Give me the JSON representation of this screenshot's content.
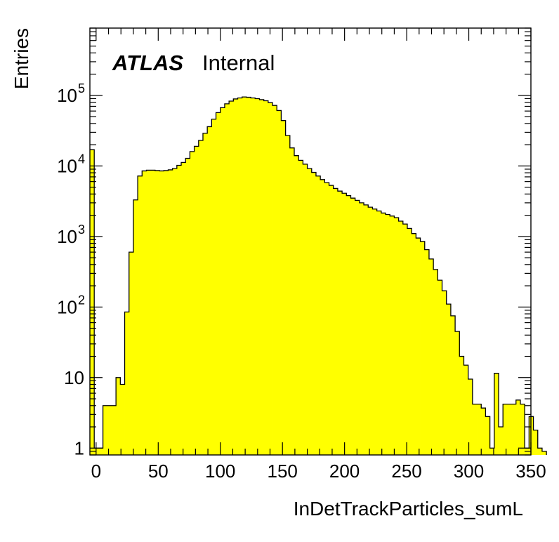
{
  "chart_data": {
    "type": "bar",
    "xlabel": "InDetTrackParticles_sumL",
    "ylabel": "Entries",
    "x_scale": "linear",
    "y_scale": "log",
    "xlim": [
      -5,
      350
    ],
    "ylim": [
      0.8,
      900000
    ],
    "bin_width": 3.5,
    "x_ticks": [
      0,
      50,
      100,
      150,
      200,
      250,
      300,
      350
    ],
    "x_tick_labels": [
      "0",
      "50",
      "100",
      "150",
      "200",
      "250",
      "300",
      "350"
    ],
    "y_ticks": [
      1,
      10,
      100,
      1000,
      10000,
      100000
    ],
    "y_tick_labels": [
      {
        "base": "1",
        "exp": ""
      },
      {
        "base": "10",
        "exp": ""
      },
      {
        "base": "10",
        "exp": "2"
      },
      {
        "base": "10",
        "exp": "3"
      },
      {
        "base": "10",
        "exp": "4"
      },
      {
        "base": "10",
        "exp": "5"
      }
    ],
    "fill_color": "#ffff00",
    "line_color": "#000000",
    "annotation": {
      "bold_text": "ATLAS",
      "text": "Internal",
      "position": "top-left"
    },
    "series": [
      {
        "values": [
          17000,
          1,
          1,
          4,
          4,
          4,
          10,
          8,
          85,
          600,
          3300,
          7200,
          8500,
          8700,
          8700,
          8600,
          8500,
          8600,
          8800,
          9200,
          10200,
          11200,
          12800,
          16000,
          19000,
          23000,
          29000,
          36000,
          46000,
          57000,
          67000,
          76000,
          83000,
          89000,
          92000,
          95000,
          94000,
          92000,
          90000,
          87000,
          84000,
          79000,
          72000,
          61000,
          44000,
          27000,
          18000,
          14000,
          12000,
          10600,
          9200,
          8100,
          7200,
          6400,
          5800,
          5300,
          4800,
          4400,
          4100,
          3800,
          3500,
          3250,
          3000,
          2800,
          2600,
          2450,
          2300,
          2150,
          2050,
          1950,
          1850,
          1650,
          1500,
          1300,
          1100,
          950,
          850,
          650,
          480,
          340,
          240,
          170,
          110,
          75,
          45,
          20,
          15,
          9.5,
          4.2,
          4.2,
          3.7,
          2.8,
          1,
          11.5,
          2,
          4.2,
          4.2,
          4.2,
          4.8,
          4.2,
          1,
          2.8,
          1.8,
          1,
          0.9
        ]
      }
    ]
  }
}
